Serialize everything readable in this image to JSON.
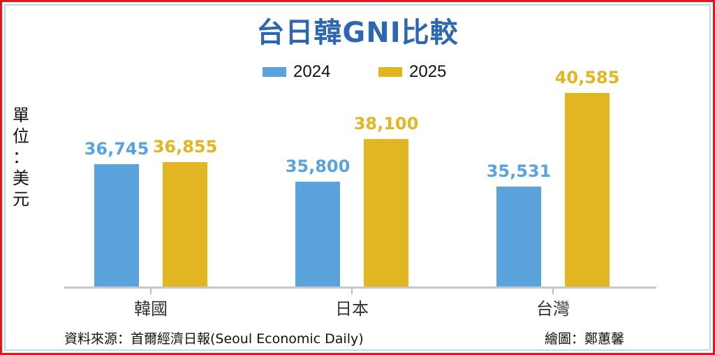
{
  "chart_data": {
    "type": "bar",
    "title": "台日韓GNI比較",
    "unit_label": "單位：美元",
    "categories": [
      "韓國",
      "日本",
      "台灣"
    ],
    "series": [
      {
        "name": "2024",
        "color": "#5aa3dd",
        "values": [
          36745,
          35800,
          35531
        ],
        "labels": [
          "36,745",
          "35,800",
          "35,531"
        ]
      },
      {
        "name": "2025",
        "color": "#e2b622",
        "values": [
          36855,
          38100,
          40585
        ],
        "labels": [
          "36,855",
          "38,100",
          "40,585"
        ]
      }
    ],
    "xlabel": "",
    "ylabel": "單位：美元",
    "y_axis_visible": false,
    "grid": false,
    "legend_position": "top",
    "data_labels": true,
    "source": "資料來源：首爾經濟日報(Seoul Economic Daily)",
    "credit": "繪圖：鄭蕙馨"
  },
  "header": {
    "title": "台日韓GNI比較"
  },
  "legend": [
    {
      "label": "2024",
      "color": "#5aa3dd"
    },
    {
      "label": "2025",
      "color": "#e2b622"
    }
  ],
  "unit": {
    "chars": [
      "單",
      "位",
      "：",
      "美",
      "元"
    ]
  },
  "footer": {
    "source": "資料來源：首爾經濟日報(Seoul Economic Daily)",
    "credit": "繪圖：鄭蕙馨"
  },
  "colors": {
    "frame": "#e8141b",
    "inner_border": "#bcd8ec",
    "title": "#2e67b1",
    "series_2024": "#5aa3dd",
    "series_2025": "#e2b622"
  }
}
